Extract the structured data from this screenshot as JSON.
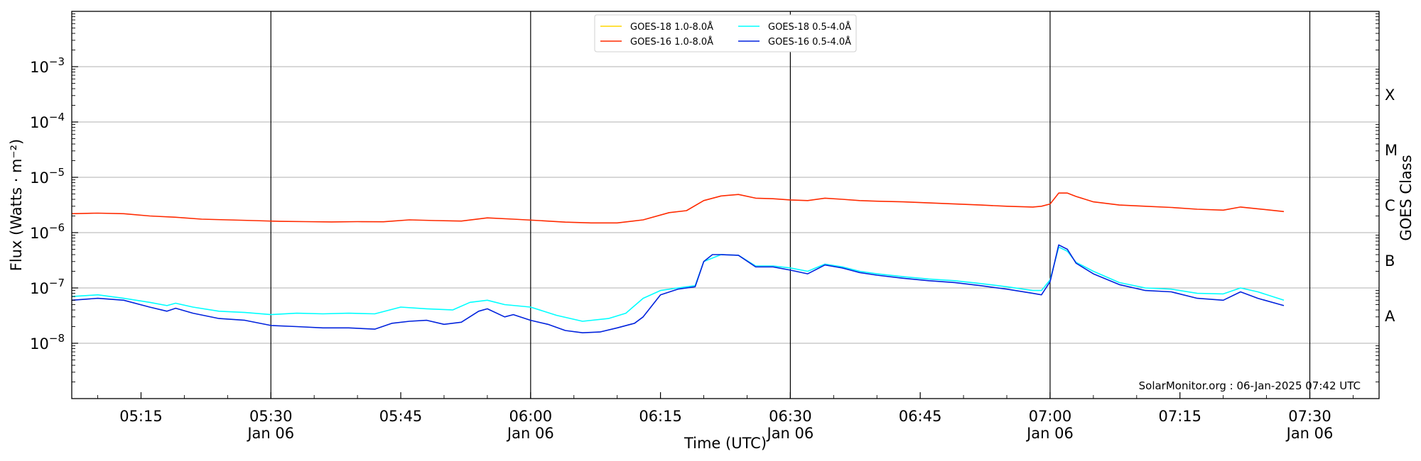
{
  "chart_data": {
    "type": "line",
    "title": "",
    "xlabel": "Time (UTC)",
    "ylabel": "Flux (Watts · m⁻²)",
    "ylabel_right": "GOES Class",
    "y_scale": "log",
    "ylim": [
      1e-09,
      0.01
    ],
    "xlim": [
      "2025-01-06 05:07",
      "2025-01-06 07:38"
    ],
    "grid": "horizontal major",
    "legend_position": "top-center",
    "watermark": "SolarMonitor.org : 06-Jan-2025 07:42 UTC",
    "x_ticks": [
      {
        "time": "05:15",
        "label": "05:15",
        "date": ""
      },
      {
        "time": "05:30",
        "label": "05:30",
        "date": "Jan 06"
      },
      {
        "time": "05:45",
        "label": "05:45",
        "date": ""
      },
      {
        "time": "06:00",
        "label": "06:00",
        "date": "Jan 06"
      },
      {
        "time": "06:15",
        "label": "06:15",
        "date": ""
      },
      {
        "time": "06:30",
        "label": "06:30",
        "date": "Jan 06"
      },
      {
        "time": "06:45",
        "label": "06:45",
        "date": ""
      },
      {
        "time": "07:00",
        "label": "07:00",
        "date": "Jan 06"
      },
      {
        "time": "07:15",
        "label": "07:15",
        "date": ""
      },
      {
        "time": "07:30",
        "label": "07:30",
        "date": "Jan 06"
      }
    ],
    "vertical_lines": [
      "05:30",
      "06:00",
      "06:30",
      "07:00",
      "07:30"
    ],
    "y_ticks": [
      {
        "value": 1e-08,
        "base": "10",
        "exp": "−8"
      },
      {
        "value": 1e-07,
        "base": "10",
        "exp": "−7"
      },
      {
        "value": 1e-06,
        "base": "10",
        "exp": "−6"
      },
      {
        "value": 1e-05,
        "base": "10",
        "exp": "−5"
      },
      {
        "value": 0.0001,
        "base": "10",
        "exp": "−4"
      },
      {
        "value": 0.001,
        "base": "10",
        "exp": "−3"
      }
    ],
    "goes_classes": [
      {
        "label": "A",
        "value": 3.16e-08
      },
      {
        "label": "B",
        "value": 3.16e-07
      },
      {
        "label": "C",
        "value": 3.16e-06
      },
      {
        "label": "M",
        "value": 3.16e-05
      },
      {
        "label": "X",
        "value": 0.000316
      }
    ],
    "series": [
      {
        "name": "GOES-18 1.0-8.0Å",
        "color": "#ffd700",
        "x": [],
        "values": []
      },
      {
        "name": "GOES-16 1.0-8.0Å",
        "color": "#ff2a00",
        "x": [
          "05:07",
          "05:10",
          "05:13",
          "05:16",
          "05:19",
          "05:22",
          "05:25",
          "05:28",
          "05:31",
          "05:34",
          "05:37",
          "05:40",
          "05:43",
          "05:46",
          "05:49",
          "05:52",
          "05:55",
          "05:58",
          "06:01",
          "06:04",
          "06:07",
          "06:10",
          "06:13",
          "06:16",
          "06:18",
          "06:20",
          "06:22",
          "06:24",
          "06:26",
          "06:28",
          "06:30",
          "06:32",
          "06:34",
          "06:36",
          "06:38",
          "06:40",
          "06:43",
          "06:46",
          "06:49",
          "06:52",
          "06:55",
          "06:58",
          "06:59",
          "07:00",
          "07:01",
          "07:02",
          "07:03",
          "07:05",
          "07:08",
          "07:11",
          "07:14",
          "07:17",
          "07:20",
          "07:22",
          "07:24",
          "07:27"
        ],
        "values": [
          2.2e-06,
          2.25e-06,
          2.2e-06,
          2e-06,
          1.9e-06,
          1.75e-06,
          1.7e-06,
          1.65e-06,
          1.6e-06,
          1.58e-06,
          1.56e-06,
          1.58e-06,
          1.57e-06,
          1.7e-06,
          1.65e-06,
          1.62e-06,
          1.85e-06,
          1.75e-06,
          1.65e-06,
          1.55e-06,
          1.5e-06,
          1.5e-06,
          1.7e-06,
          2.3e-06,
          2.5e-06,
          3.8e-06,
          4.6e-06,
          4.9e-06,
          4.2e-06,
          4.1e-06,
          3.9e-06,
          3.8e-06,
          4.2e-06,
          4e-06,
          3.8e-06,
          3.7e-06,
          3.6e-06,
          3.45e-06,
          3.3e-06,
          3.15e-06,
          3e-06,
          2.9e-06,
          3e-06,
          3.3e-06,
          5.2e-06,
          5.2e-06,
          4.5e-06,
          3.6e-06,
          3.15e-06,
          3e-06,
          2.85e-06,
          2.65e-06,
          2.55e-06,
          2.9e-06,
          2.7e-06,
          2.4e-06
        ]
      },
      {
        "name": "GOES-18 0.5-4.0Å",
        "color": "#00ffff",
        "x": [
          "05:07",
          "05:10",
          "05:13",
          "05:16",
          "05:18",
          "05:19",
          "05:21",
          "05:24",
          "05:27",
          "05:30",
          "05:33",
          "05:36",
          "05:39",
          "05:42",
          "05:45",
          "05:48",
          "05:51",
          "05:53",
          "05:55",
          "05:57",
          "06:00",
          "06:03",
          "06:06",
          "06:09",
          "06:11",
          "06:13",
          "06:15",
          "06:17",
          "06:19",
          "06:20",
          "06:22",
          "06:24",
          "06:26",
          "06:28",
          "06:30",
          "06:32",
          "06:34",
          "06:36",
          "06:38",
          "06:40",
          "06:43",
          "06:46",
          "06:49",
          "06:52",
          "06:55",
          "06:58",
          "06:59",
          "07:00",
          "07:01",
          "07:02",
          "07:03",
          "07:05",
          "07:08",
          "07:11",
          "07:14",
          "07:17",
          "07:20",
          "07:22",
          "07:24",
          "07:27"
        ],
        "values": [
          7e-08,
          7.5e-08,
          6.5e-08,
          5.5e-08,
          4.8e-08,
          5.3e-08,
          4.5e-08,
          3.8e-08,
          3.6e-08,
          3.3e-08,
          3.5e-08,
          3.4e-08,
          3.5e-08,
          3.4e-08,
          4.5e-08,
          4.2e-08,
          4e-08,
          5.5e-08,
          6e-08,
          5e-08,
          4.5e-08,
          3.2e-08,
          2.5e-08,
          2.8e-08,
          3.5e-08,
          6.5e-08,
          9e-08,
          1e-07,
          1.1e-07,
          3e-07,
          4e-07,
          3.9e-07,
          2.5e-07,
          2.5e-07,
          2.3e-07,
          2e-07,
          2.7e-07,
          2.4e-07,
          2e-07,
          1.8e-07,
          1.6e-07,
          1.45e-07,
          1.35e-07,
          1.2e-07,
          1.05e-07,
          9e-08,
          9e-08,
          1.4e-07,
          5.5e-07,
          4.6e-07,
          2.9e-07,
          2e-07,
          1.25e-07,
          1e-07,
          9.5e-08,
          8e-08,
          7.8e-08,
          1e-07,
          8.5e-08,
          6e-08
        ]
      },
      {
        "name": "GOES-16 0.5-4.0Å",
        "color": "#0022dd",
        "x": [
          "05:07",
          "05:10",
          "05:13",
          "05:16",
          "05:18",
          "05:19",
          "05:21",
          "05:24",
          "05:27",
          "05:30",
          "05:33",
          "05:36",
          "05:39",
          "05:42",
          "05:44",
          "05:46",
          "05:48",
          "05:50",
          "05:52",
          "05:54",
          "05:55",
          "05:57",
          "05:58",
          "06:00",
          "06:02",
          "06:04",
          "06:06",
          "06:08",
          "06:10",
          "06:12",
          "06:13",
          "06:15",
          "06:17",
          "06:19",
          "06:20",
          "06:21",
          "06:22",
          "06:24",
          "06:26",
          "06:28",
          "06:30",
          "06:32",
          "06:34",
          "06:36",
          "06:38",
          "06:40",
          "06:43",
          "06:46",
          "06:49",
          "06:52",
          "06:55",
          "06:58",
          "06:59",
          "07:00",
          "07:01",
          "07:02",
          "07:03",
          "07:05",
          "07:08",
          "07:11",
          "07:14",
          "07:17",
          "07:20",
          "07:22",
          "07:24",
          "07:27"
        ],
        "values": [
          6e-08,
          6.5e-08,
          6e-08,
          4.5e-08,
          3.8e-08,
          4.3e-08,
          3.5e-08,
          2.8e-08,
          2.6e-08,
          2.1e-08,
          2e-08,
          1.9e-08,
          1.9e-08,
          1.8e-08,
          2.3e-08,
          2.5e-08,
          2.6e-08,
          2.2e-08,
          2.4e-08,
          3.8e-08,
          4.2e-08,
          3e-08,
          3.3e-08,
          2.6e-08,
          2.2e-08,
          1.7e-08,
          1.55e-08,
          1.6e-08,
          1.9e-08,
          2.3e-08,
          3e-08,
          7.5e-08,
          9.5e-08,
          1.05e-07,
          3e-07,
          4e-07,
          4e-07,
          3.9e-07,
          2.4e-07,
          2.4e-07,
          2.1e-07,
          1.8e-07,
          2.6e-07,
          2.3e-07,
          1.9e-07,
          1.7e-07,
          1.5e-07,
          1.35e-07,
          1.25e-07,
          1.1e-07,
          9.5e-08,
          8e-08,
          7.5e-08,
          1.3e-07,
          6e-07,
          5e-07,
          2.8e-07,
          1.8e-07,
          1.15e-07,
          9e-08,
          8.5e-08,
          6.5e-08,
          6e-08,
          8.5e-08,
          6.5e-08,
          4.8e-08
        ]
      }
    ]
  }
}
